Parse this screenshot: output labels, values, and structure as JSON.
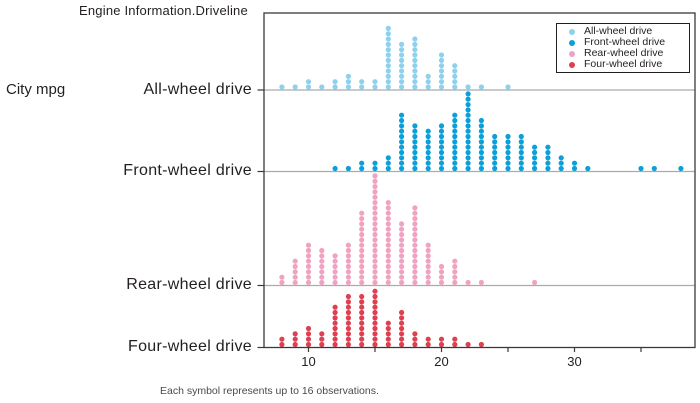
{
  "title": "Engine Information.Driveline",
  "left_axis": {
    "measure_label": "City mpg"
  },
  "footnote": "Each symbol represents up to 16 observations.",
  "colors": {
    "background": "#ffffff",
    "frame": "#3a3a3a",
    "baseline": "#ababab",
    "tick": "#3a3a3a",
    "text": "#231f20",
    "footnote_text": "#4a4a4a",
    "all_wheel": "#8ed1ed",
    "front_wheel": "#0d9fd8",
    "rear_wheel": "#f0a3c0",
    "four_wheel": "#dd4050"
  },
  "chart_data": {
    "type": "dotplot",
    "title": "Engine Information.Driveline",
    "xlabel": "",
    "ylabel": "City mpg",
    "xlim": [
      6.5,
      39
    ],
    "x_major_ticks": [
      10,
      20,
      30
    ],
    "x_minor_ticks": [
      10,
      15,
      20,
      25,
      30,
      35
    ],
    "grid": false,
    "legend_position": "top-right",
    "symbol_unit": "Each symbol represents up to 16 observations.",
    "categories": [
      "All-wheel drive",
      "Front-wheel drive",
      "Rear-wheel drive",
      "Four-wheel drive"
    ],
    "series": [
      {
        "name": "All-wheel drive",
        "color": "#8ed1ed",
        "points": [
          [
            8,
            1
          ],
          [
            9,
            1
          ],
          [
            10,
            2
          ],
          [
            11,
            1
          ],
          [
            12,
            2
          ],
          [
            13,
            3
          ],
          [
            14,
            2
          ],
          [
            15,
            2
          ],
          [
            16,
            12
          ],
          [
            17,
            9
          ],
          [
            18,
            10
          ],
          [
            19,
            3
          ],
          [
            20,
            7
          ],
          [
            21,
            5
          ],
          [
            22,
            1
          ],
          [
            23,
            1
          ],
          [
            25,
            1
          ]
        ]
      },
      {
        "name": "Front-wheel drive",
        "color": "#0d9fd8",
        "points": [
          [
            12,
            1
          ],
          [
            13,
            1
          ],
          [
            14,
            2
          ],
          [
            15,
            2
          ],
          [
            16,
            3
          ],
          [
            17,
            11
          ],
          [
            18,
            9
          ],
          [
            19,
            8
          ],
          [
            20,
            9
          ],
          [
            21,
            11
          ],
          [
            22,
            15
          ],
          [
            23,
            10
          ],
          [
            24,
            7
          ],
          [
            25,
            7
          ],
          [
            26,
            7
          ],
          [
            27,
            5
          ],
          [
            28,
            5
          ],
          [
            29,
            3
          ],
          [
            30,
            2
          ],
          [
            31,
            1
          ],
          [
            35,
            1
          ],
          [
            36,
            1
          ],
          [
            38,
            1
          ]
        ]
      },
      {
        "name": "Rear-wheel drive",
        "color": "#f0a3c0",
        "points": [
          [
            8,
            2
          ],
          [
            9,
            5
          ],
          [
            10,
            8
          ],
          [
            11,
            7
          ],
          [
            12,
            6
          ],
          [
            13,
            8
          ],
          [
            14,
            14
          ],
          [
            15,
            21
          ],
          [
            16,
            16
          ],
          [
            17,
            12
          ],
          [
            18,
            15
          ],
          [
            19,
            8
          ],
          [
            20,
            4
          ],
          [
            21,
            5
          ],
          [
            22,
            1
          ],
          [
            23,
            1
          ],
          [
            27,
            1
          ]
        ]
      },
      {
        "name": "Four-wheel drive",
        "color": "#dd4050",
        "points": [
          [
            8,
            2
          ],
          [
            9,
            3
          ],
          [
            10,
            4
          ],
          [
            11,
            3
          ],
          [
            12,
            8
          ],
          [
            13,
            10
          ],
          [
            14,
            10
          ],
          [
            15,
            11
          ],
          [
            16,
            5
          ],
          [
            17,
            7
          ],
          [
            18,
            3
          ],
          [
            19,
            2
          ],
          [
            20,
            2
          ],
          [
            21,
            2
          ],
          [
            22,
            1
          ],
          [
            23,
            1
          ]
        ]
      }
    ]
  }
}
